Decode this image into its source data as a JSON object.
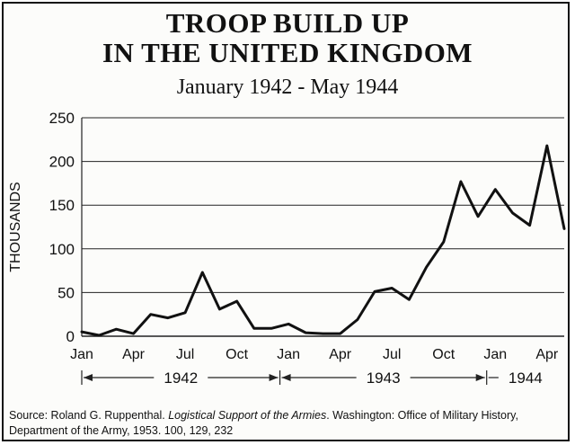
{
  "chart_data": {
    "type": "line",
    "title": [
      "TROOP BUILD UP",
      "IN THE UNITED KINGDOM"
    ],
    "subtitle": "January 1942 - May 1944",
    "ylabel": "THOUSANDS",
    "xlabel": "",
    "ylim": [
      0,
      250
    ],
    "yticks": [
      0,
      50,
      100,
      150,
      200,
      250
    ],
    "grid": "horizontal",
    "x_tick_labels": [
      "Jan",
      "Apr",
      "Jul",
      "Oct",
      "Jan",
      "Apr",
      "Jul",
      "Oct",
      "Jan",
      "Apr"
    ],
    "x_tick_months": [
      "1942-01",
      "1942-04",
      "1942-07",
      "1942-10",
      "1943-01",
      "1943-04",
      "1943-07",
      "1943-10",
      "1944-01",
      "1944-04"
    ],
    "year_ranges": [
      {
        "label": "1942",
        "start": "1942-01",
        "end": "1942-12"
      },
      {
        "label": "1943",
        "start": "1943-01",
        "end": "1943-12"
      },
      {
        "label": "1944",
        "start": "1944-01",
        "end": "1944-05"
      }
    ],
    "series": [
      {
        "months": [
          "1942-01",
          "1942-02",
          "1942-03",
          "1942-04",
          "1942-05",
          "1942-06",
          "1942-07",
          "1942-08",
          "1942-09",
          "1942-10",
          "1942-11",
          "1942-12",
          "1943-01",
          "1943-02",
          "1943-03",
          "1943-04",
          "1943-05",
          "1943-06",
          "1943-07",
          "1943-08",
          "1943-09",
          "1943-10",
          "1943-11",
          "1943-12",
          "1944-01",
          "1944-02",
          "1944-03",
          "1944-04",
          "1944-05"
        ],
        "values": [
          5,
          1,
          8,
          3,
          25,
          21,
          27,
          73,
          31,
          40,
          9,
          9,
          14,
          4,
          3,
          3,
          19,
          51,
          55,
          42,
          79,
          108,
          177,
          137,
          168,
          141,
          127,
          218,
          123
        ]
      }
    ]
  },
  "source": {
    "prefix": "Source: Roland G. Ruppenthal. ",
    "italic": "Logistical Support of the Armies",
    "suffix": ". Washington: Office of Military History, Department of the Army, 1953. 100, 129, 232"
  }
}
